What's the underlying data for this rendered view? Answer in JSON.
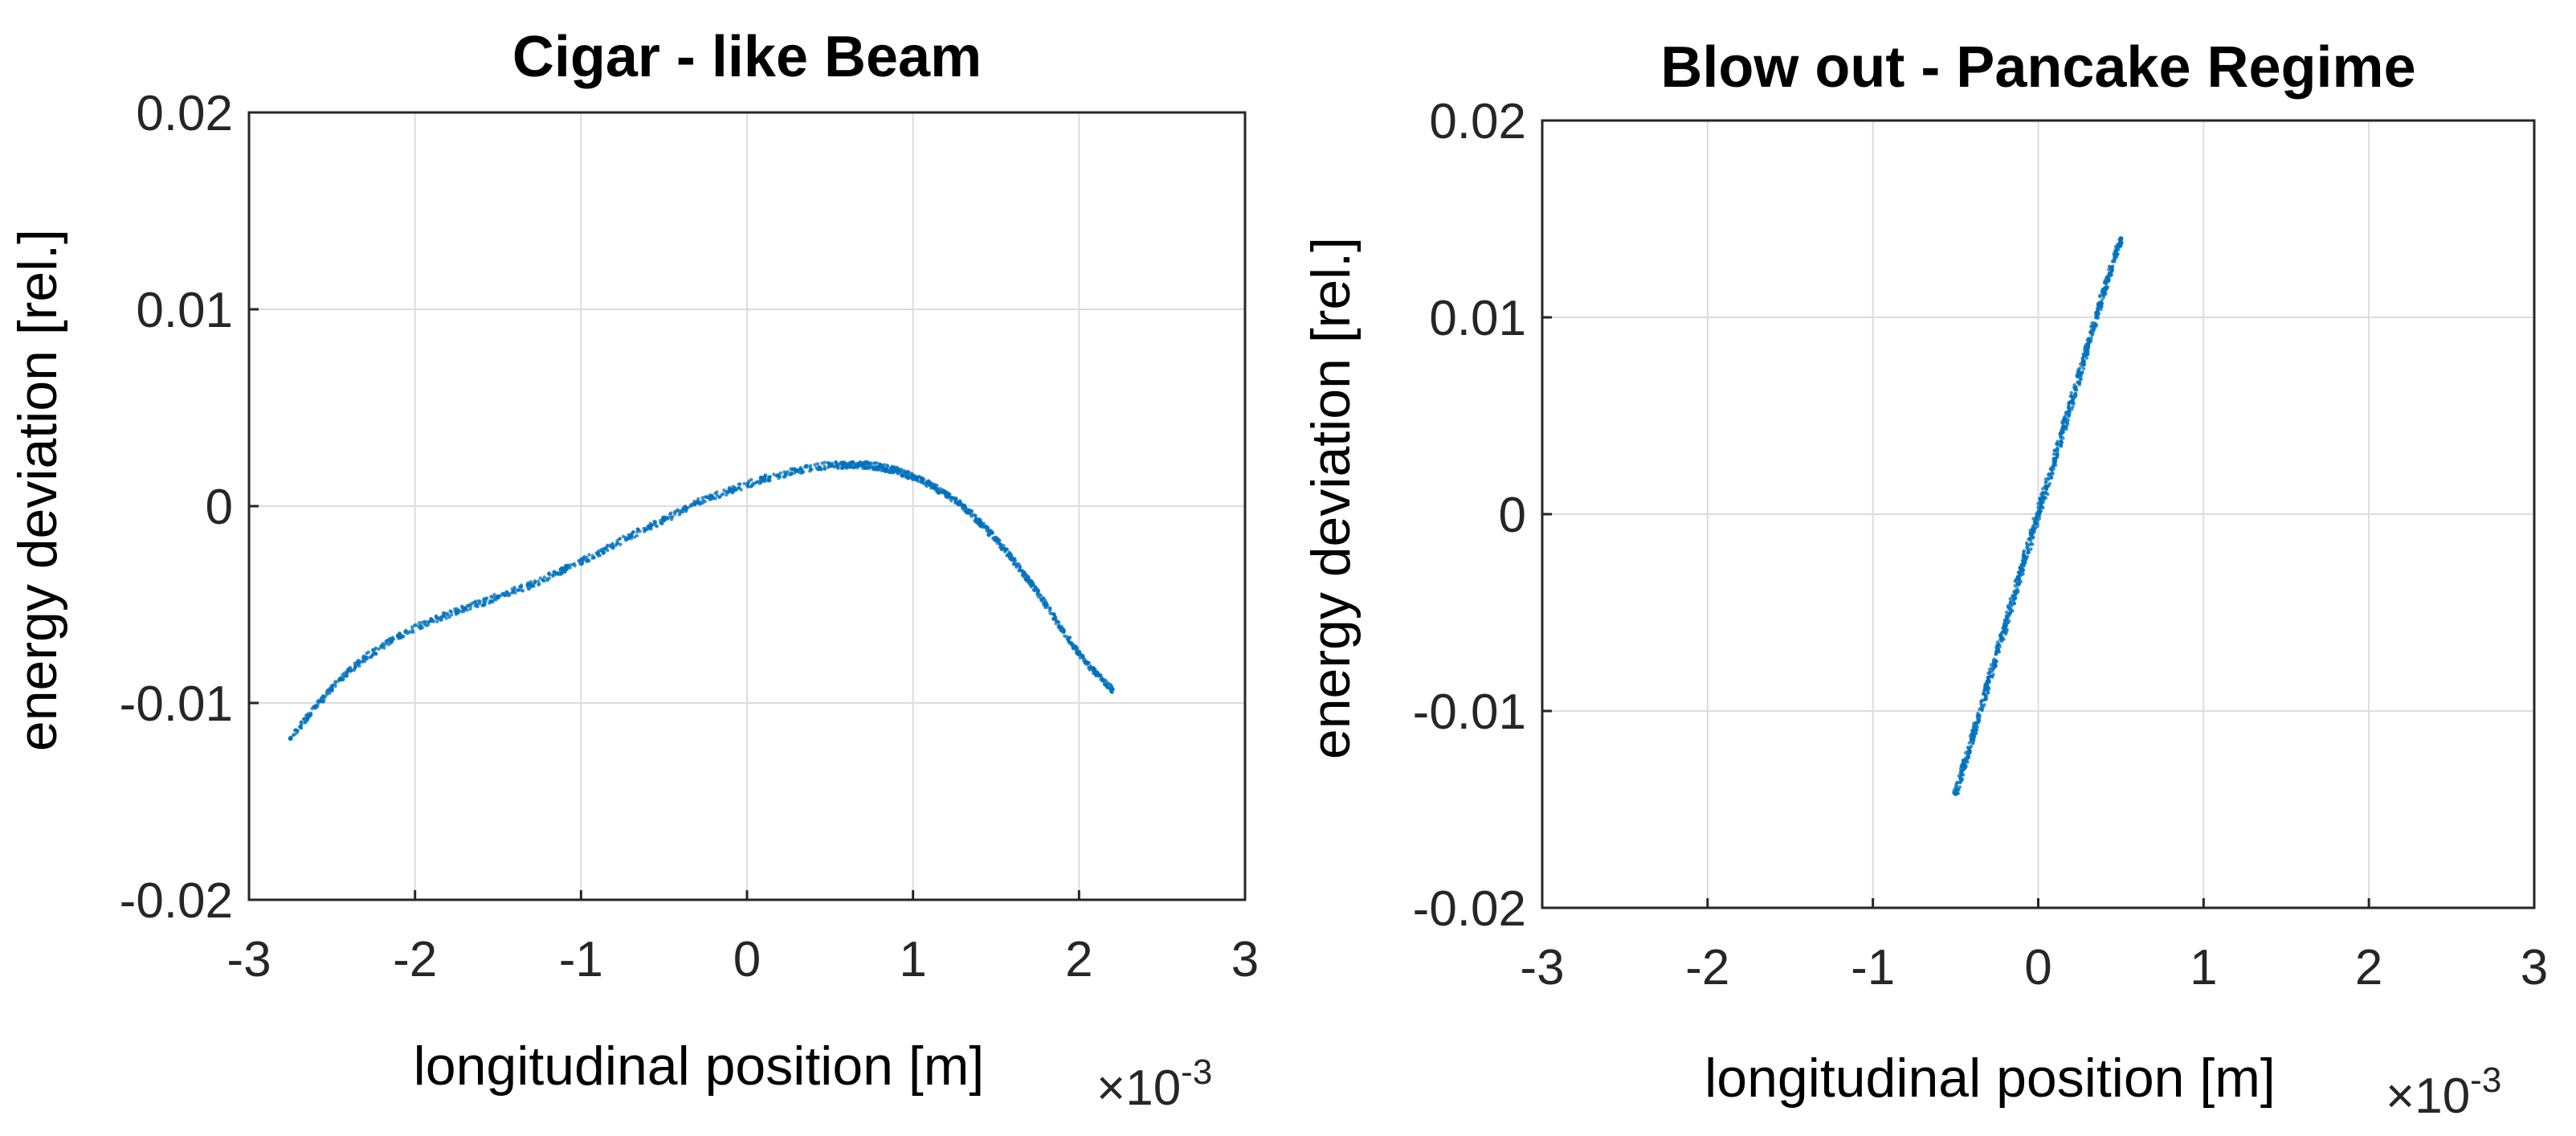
{
  "colors": {
    "points": "#0072BD",
    "grid": "#dcdcdc",
    "axis": "#262626"
  },
  "chart_data": [
    {
      "type": "scatter",
      "title": "Cigar - like Beam",
      "xlabel": "longitudinal position [m]",
      "ylabel": "energy deviation [rel.]",
      "x_multiplier": {
        "prefix": "×10",
        "exponent": "-3"
      },
      "xlim": [
        -3,
        3
      ],
      "ylim": [
        -0.02,
        0.02
      ],
      "x_ticks": [
        "-3",
        "-2",
        "-1",
        "0",
        "1",
        "2",
        "3"
      ],
      "y_ticks": [
        "-0.02",
        "-0.01",
        "0",
        "0.01",
        "0.02"
      ],
      "grid": true,
      "series": [
        {
          "x_units": "x10^-3 m",
          "x": [
            -2.75,
            -2.6,
            -2.45,
            -2.3,
            -2.1,
            -1.9,
            -1.7,
            -1.5,
            -1.3,
            -1.1,
            -0.9,
            -0.7,
            -0.5,
            -0.3,
            -0.1,
            0.1,
            0.3,
            0.5,
            0.6,
            0.7,
            0.8,
            0.9,
            1.0,
            1.1,
            1.2,
            1.3,
            1.4,
            1.5,
            1.6,
            1.7,
            1.8,
            1.9,
            2.0,
            2.1,
            2.2
          ],
          "y": [
            -0.0118,
            -0.0102,
            -0.0088,
            -0.0077,
            -0.0066,
            -0.0058,
            -0.0052,
            -0.0046,
            -0.004,
            -0.0032,
            -0.0024,
            -0.0015,
            -0.0007,
            0.0002,
            0.0008,
            0.0014,
            0.0018,
            0.0021,
            0.0021,
            0.0021,
            0.002,
            0.0018,
            0.0015,
            0.0011,
            0.0006,
            0.0,
            -0.0008,
            -0.0017,
            -0.0027,
            -0.0038,
            -0.005,
            -0.0063,
            -0.0075,
            -0.0085,
            -0.0093
          ]
        }
      ]
    },
    {
      "type": "scatter",
      "title": "Blow out - Pancake Regime",
      "xlabel": "longitudinal position [m]",
      "ylabel": "energy deviation [rel.]",
      "x_multiplier": {
        "prefix": "×10",
        "exponent": "-3"
      },
      "xlim": [
        -3,
        3
      ],
      "ylim": [
        -0.02,
        0.02
      ],
      "x_ticks": [
        "-3",
        "-2",
        "-1",
        "0",
        "1",
        "2",
        "3"
      ],
      "y_ticks": [
        "-0.02",
        "-0.01",
        "0",
        "0.01",
        "0.02"
      ],
      "grid": true,
      "series": [
        {
          "x_units": "x10^-3 m",
          "x": [
            -0.5,
            -0.4,
            -0.3,
            -0.2,
            -0.1,
            0.0,
            0.1,
            0.2,
            0.3,
            0.4,
            0.5
          ],
          "y": [
            -0.0142,
            -0.0114,
            -0.0085,
            -0.0057,
            -0.0028,
            0.0,
            0.0028,
            0.0057,
            0.0085,
            0.0114,
            0.014
          ]
        }
      ]
    }
  ]
}
